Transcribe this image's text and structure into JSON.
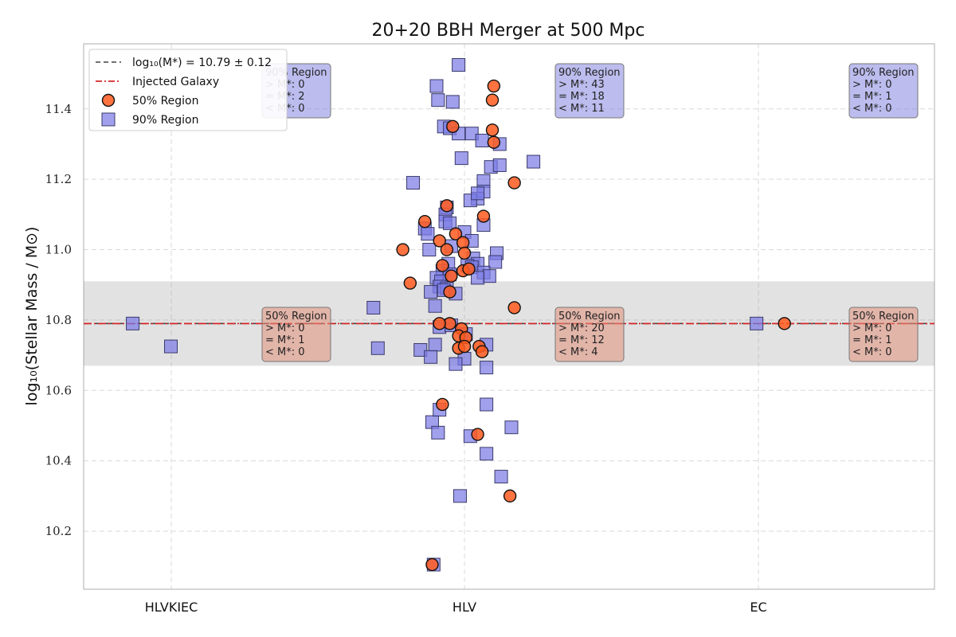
{
  "chart_data": {
    "type": "scatter",
    "title": "20+20 BBH Merger at 500 Mpc",
    "xlabel": "",
    "ylabel": "log₁₀(Stellar Mass / M⊙)",
    "categories": [
      "HLVKIEC",
      "HLV",
      "EC"
    ],
    "xlim": [
      -0.3,
      2.6
    ],
    "ylim": [
      10.035,
      11.585
    ],
    "yticks": [
      10.2,
      10.4,
      10.6,
      10.8,
      11.0,
      11.2,
      11.4
    ],
    "ytick_labels": [
      "10.2",
      "10.4",
      "10.6",
      "10.8",
      "11.0",
      "11.2",
      "11.4"
    ],
    "grid": true,
    "legend_position": "top-left",
    "mean_line": {
      "label": "log₁₀(M*) = 10.79 ± 0.12",
      "value": 10.79,
      "band": [
        10.67,
        10.91
      ],
      "color": "#444444"
    },
    "injected_line": {
      "label": "Injected Galaxy",
      "value": 10.79,
      "color": "#d62728"
    },
    "series": [
      {
        "name": "50% Region",
        "marker": "circle",
        "color": "#ff5a1f",
        "points": [
          [
            -0.05,
            10.79
          ],
          [
            0.1,
            11.465
          ],
          [
            0.095,
            11.425
          ],
          [
            0.095,
            11.34
          ],
          [
            0.1,
            11.305
          ],
          [
            -0.04,
            11.35
          ],
          [
            0.17,
            11.19
          ],
          [
            -0.06,
            11.125
          ],
          [
            0.065,
            11.095
          ],
          [
            -0.135,
            11.08
          ],
          [
            -0.085,
            11.025
          ],
          [
            -0.21,
            11.0
          ],
          [
            -0.06,
            11.0
          ],
          [
            -0.03,
            11.045
          ],
          [
            -0.005,
            11.02
          ],
          [
            0.0,
            10.99
          ],
          [
            -0.075,
            10.955
          ],
          [
            -0.185,
            10.905
          ],
          [
            -0.045,
            10.925
          ],
          [
            -0.005,
            10.94
          ],
          [
            0.015,
            10.945
          ],
          [
            -0.05,
            10.88
          ],
          [
            0.17,
            10.835
          ],
          [
            -0.085,
            10.79
          ],
          [
            -0.01,
            10.775
          ],
          [
            -0.02,
            10.755
          ],
          [
            -0.02,
            10.72
          ],
          [
            0.005,
            10.75
          ],
          [
            0.0,
            10.725
          ],
          [
            0.05,
            10.725
          ],
          [
            0.06,
            10.71
          ],
          [
            -0.075,
            10.56
          ],
          [
            0.045,
            10.475
          ],
          [
            0.155,
            10.3
          ],
          [
            -0.11,
            10.105
          ],
          [
            1.09,
            10.79
          ]
        ]
      },
      {
        "name": "90% Region",
        "marker": "square",
        "color": "#7b7be6",
        "points": [
          [
            -1.13,
            10.79
          ],
          [
            -1.0,
            10.725
          ],
          [
            -0.02,
            11.525
          ],
          [
            -0.095,
            11.465
          ],
          [
            -0.09,
            11.425
          ],
          [
            -0.04,
            11.42
          ],
          [
            -0.07,
            11.35
          ],
          [
            -0.05,
            11.345
          ],
          [
            -0.02,
            11.33
          ],
          [
            0.025,
            11.33
          ],
          [
            0.06,
            11.31
          ],
          [
            0.12,
            11.3
          ],
          [
            -0.01,
            11.26
          ],
          [
            0.235,
            11.25
          ],
          [
            0.09,
            11.235
          ],
          [
            0.12,
            11.24
          ],
          [
            -0.175,
            11.19
          ],
          [
            0.065,
            11.195
          ],
          [
            0.065,
            11.165
          ],
          [
            0.045,
            11.145
          ],
          [
            0.02,
            11.14
          ],
          [
            0.045,
            11.16
          ],
          [
            -0.06,
            11.12
          ],
          [
            -0.065,
            11.1
          ],
          [
            -0.065,
            11.08
          ],
          [
            -0.05,
            11.075
          ],
          [
            0.065,
            11.07
          ],
          [
            -0.135,
            11.06
          ],
          [
            -0.125,
            11.045
          ],
          [
            0.0,
            11.05
          ],
          [
            0.025,
            11.025
          ],
          [
            -0.045,
            11.01
          ],
          [
            -0.12,
            11.0
          ],
          [
            0.11,
            10.99
          ],
          [
            0.105,
            10.965
          ],
          [
            0.03,
            10.975
          ],
          [
            0.045,
            10.96
          ],
          [
            -0.055,
            10.96
          ],
          [
            0.01,
            10.955
          ],
          [
            0.025,
            10.95
          ],
          [
            -0.075,
            10.94
          ],
          [
            0.065,
            10.935
          ],
          [
            -0.05,
            10.93
          ],
          [
            0.085,
            10.925
          ],
          [
            -0.095,
            10.92
          ],
          [
            0.045,
            10.92
          ],
          [
            -0.08,
            10.91
          ],
          [
            -0.085,
            10.895
          ],
          [
            -0.06,
            10.89
          ],
          [
            -0.07,
            10.885
          ],
          [
            -0.115,
            10.88
          ],
          [
            -0.03,
            10.875
          ],
          [
            -0.1,
            10.84
          ],
          [
            -0.31,
            10.835
          ],
          [
            -0.085,
            10.78
          ],
          [
            -0.045,
            10.785
          ],
          [
            0.005,
            10.76
          ],
          [
            0.075,
            10.73
          ],
          [
            -0.1,
            10.73
          ],
          [
            -0.295,
            10.72
          ],
          [
            -0.15,
            10.715
          ],
          [
            -0.115,
            10.695
          ],
          [
            0.0,
            10.69
          ],
          [
            -0.03,
            10.675
          ],
          [
            0.075,
            10.665
          ],
          [
            0.075,
            10.56
          ],
          [
            -0.11,
            10.51
          ],
          [
            -0.085,
            10.545
          ],
          [
            -0.09,
            10.48
          ],
          [
            0.02,
            10.47
          ],
          [
            0.16,
            10.495
          ],
          [
            0.075,
            10.42
          ],
          [
            0.125,
            10.355
          ],
          [
            -0.015,
            10.3
          ],
          [
            -0.105,
            10.105
          ],
          [
            0.995,
            10.79
          ]
        ]
      }
    ],
    "annotations": [
      {
        "header": "90% Region",
        "gt": "> M*: 0",
        "eq": "= M*: 2",
        "lt": "< M*: 0",
        "category": "HLVKIEC",
        "color": "#8585e0"
      },
      {
        "header": "90% Region",
        "gt": "> M*: 43",
        "eq": "= M*: 18",
        "lt": "< M*: 11",
        "category": "HLV",
        "color": "#8585e0"
      },
      {
        "header": "90% Region",
        "gt": "> M*: 0",
        "eq": "= M*: 1",
        "lt": "< M*: 0",
        "category": "EC",
        "color": "#8585e0"
      },
      {
        "header": "50% Region",
        "gt": "> M*: 0",
        "eq": "= M*: 1",
        "lt": "< M*: 0",
        "category": "HLVKIEC",
        "color": "#e28f7a"
      },
      {
        "header": "50% Region",
        "gt": "> M*: 20",
        "eq": "= M*: 12",
        "lt": "< M*: 4",
        "category": "HLV",
        "color": "#e28f7a"
      },
      {
        "header": "50% Region",
        "gt": "> M*: 0",
        "eq": "= M*: 1",
        "lt": "< M*: 0",
        "category": "EC",
        "color": "#e28f7a"
      }
    ]
  }
}
